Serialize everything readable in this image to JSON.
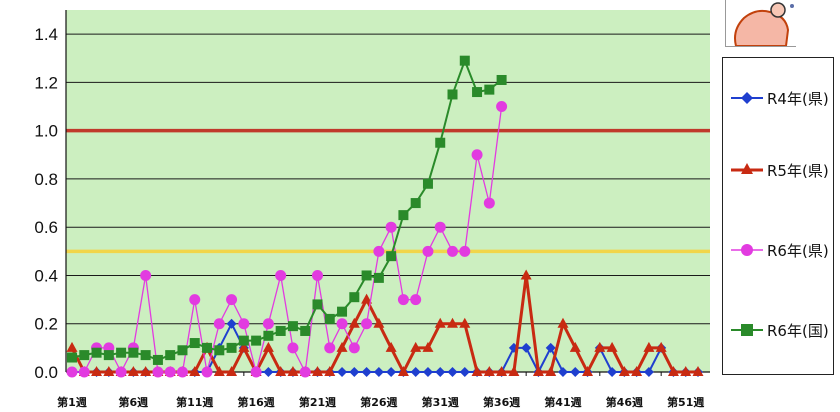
{
  "chart_data": {
    "type": "line",
    "title": "",
    "xlabel": "",
    "ylabel": "",
    "ylim": [
      0,
      1.5
    ],
    "y_ticks": [
      "0.0",
      "0.2",
      "0.4",
      "0.6",
      "0.8",
      "1.0",
      "1.2",
      "1.4"
    ],
    "x_tick_labels": [
      "第1週",
      "第6週",
      "第11週",
      "第16週",
      "第21週",
      "第26週",
      "第31週",
      "第36週",
      "第41週",
      "第46週",
      "第51週"
    ],
    "x_tick_weeks": [
      1,
      6,
      11,
      16,
      21,
      26,
      31,
      36,
      41,
      46,
      51
    ],
    "x_range": [
      1,
      52
    ],
    "plot_background": "#ccefc0",
    "grid": true,
    "reference_lines": [
      {
        "value": 1.0,
        "color": "#c0392b"
      },
      {
        "value": 0.5,
        "color": "#f1d54a"
      }
    ],
    "legend_position": "right",
    "series": [
      {
        "name": "R4年(県)",
        "color": "#1f3fcf",
        "marker": "diamond",
        "x": [
          1,
          2,
          3,
          4,
          5,
          6,
          7,
          8,
          9,
          10,
          11,
          12,
          13,
          14,
          15,
          16,
          17,
          18,
          19,
          20,
          21,
          22,
          23,
          24,
          25,
          26,
          27,
          28,
          29,
          30,
          31,
          32,
          33,
          34,
          35,
          36,
          37,
          38,
          39,
          40,
          41,
          42,
          43,
          44,
          45,
          46,
          47,
          48,
          49,
          50,
          51,
          52
        ],
        "values": [
          0,
          0,
          0,
          0,
          0,
          0,
          0,
          0,
          0,
          0,
          0,
          0,
          0.1,
          0.2,
          0.1,
          0,
          0,
          0,
          0,
          0,
          0,
          0,
          0,
          0,
          0,
          0,
          0,
          0,
          0,
          0,
          0,
          0,
          0,
          0,
          0,
          0,
          0.1,
          0.1,
          0,
          0.1,
          0,
          0,
          0,
          0.1,
          0,
          0,
          0,
          0,
          0.1,
          0,
          0,
          0
        ]
      },
      {
        "name": "R5年(県)",
        "color": "#c82a12",
        "marker": "triangle",
        "x": [
          1,
          2,
          3,
          4,
          5,
          6,
          7,
          8,
          9,
          10,
          11,
          12,
          13,
          14,
          15,
          16,
          17,
          18,
          19,
          20,
          21,
          22,
          23,
          24,
          25,
          26,
          27,
          28,
          29,
          30,
          31,
          32,
          33,
          34,
          35,
          36,
          37,
          38,
          39,
          40,
          41,
          42,
          43,
          44,
          45,
          46,
          47,
          48,
          49,
          50,
          51,
          52
        ],
        "values": [
          0.1,
          0,
          0,
          0,
          0,
          0,
          0,
          0,
          0,
          0,
          0,
          0.1,
          0,
          0,
          0.1,
          0,
          0.1,
          0,
          0,
          0,
          0,
          0,
          0.1,
          0.2,
          0.3,
          0.2,
          0.1,
          0,
          0.1,
          0.1,
          0.2,
          0.2,
          0.2,
          0,
          0,
          0,
          0,
          0.4,
          0,
          0,
          0.2,
          0.1,
          0,
          0.1,
          0.1,
          0,
          0,
          0.1,
          0.1,
          0,
          0,
          0
        ]
      },
      {
        "name": "R6年(県)",
        "color": "#e23be0",
        "marker": "circle",
        "x": [
          1,
          2,
          3,
          4,
          5,
          6,
          7,
          8,
          9,
          10,
          11,
          12,
          13,
          14,
          15,
          16,
          17,
          18,
          19,
          20,
          21,
          22,
          23,
          24,
          25,
          26,
          27,
          28,
          29,
          30,
          31,
          32,
          33,
          34,
          35,
          36
        ],
        "values": [
          0,
          0,
          0.1,
          0.1,
          0,
          0.1,
          0.4,
          0,
          0,
          0,
          0.3,
          0,
          0.2,
          0.3,
          0.2,
          0,
          0.2,
          0.4,
          0.1,
          0,
          0.4,
          0.1,
          0.2,
          0.1,
          0.2,
          0.5,
          0.6,
          0.3,
          0.3,
          0.5,
          0.6,
          0.5,
          0.5,
          0.9,
          0.7,
          1.1
        ]
      },
      {
        "name": "R6年(国)",
        "color": "#2a8a2a",
        "marker": "square",
        "x": [
          1,
          2,
          3,
          4,
          5,
          6,
          7,
          8,
          9,
          10,
          11,
          12,
          13,
          14,
          15,
          16,
          17,
          18,
          19,
          20,
          21,
          22,
          23,
          24,
          25,
          26,
          27,
          28,
          29,
          30,
          31,
          32,
          33,
          34,
          35,
          36
        ],
        "values": [
          0.06,
          0.07,
          0.08,
          0.07,
          0.08,
          0.08,
          0.07,
          0.05,
          0.07,
          0.09,
          0.12,
          0.1,
          0.09,
          0.1,
          0.13,
          0.13,
          0.15,
          0.17,
          0.19,
          0.17,
          0.28,
          0.22,
          0.25,
          0.31,
          0.4,
          0.39,
          0.48,
          0.65,
          0.7,
          0.78,
          0.95,
          1.15,
          1.29,
          1.16,
          1.17,
          1.21
        ]
      }
    ]
  },
  "legend": {
    "items": [
      "R4年(県)",
      "R5年(県)",
      "R6年(県)",
      "R6年(国)"
    ]
  }
}
